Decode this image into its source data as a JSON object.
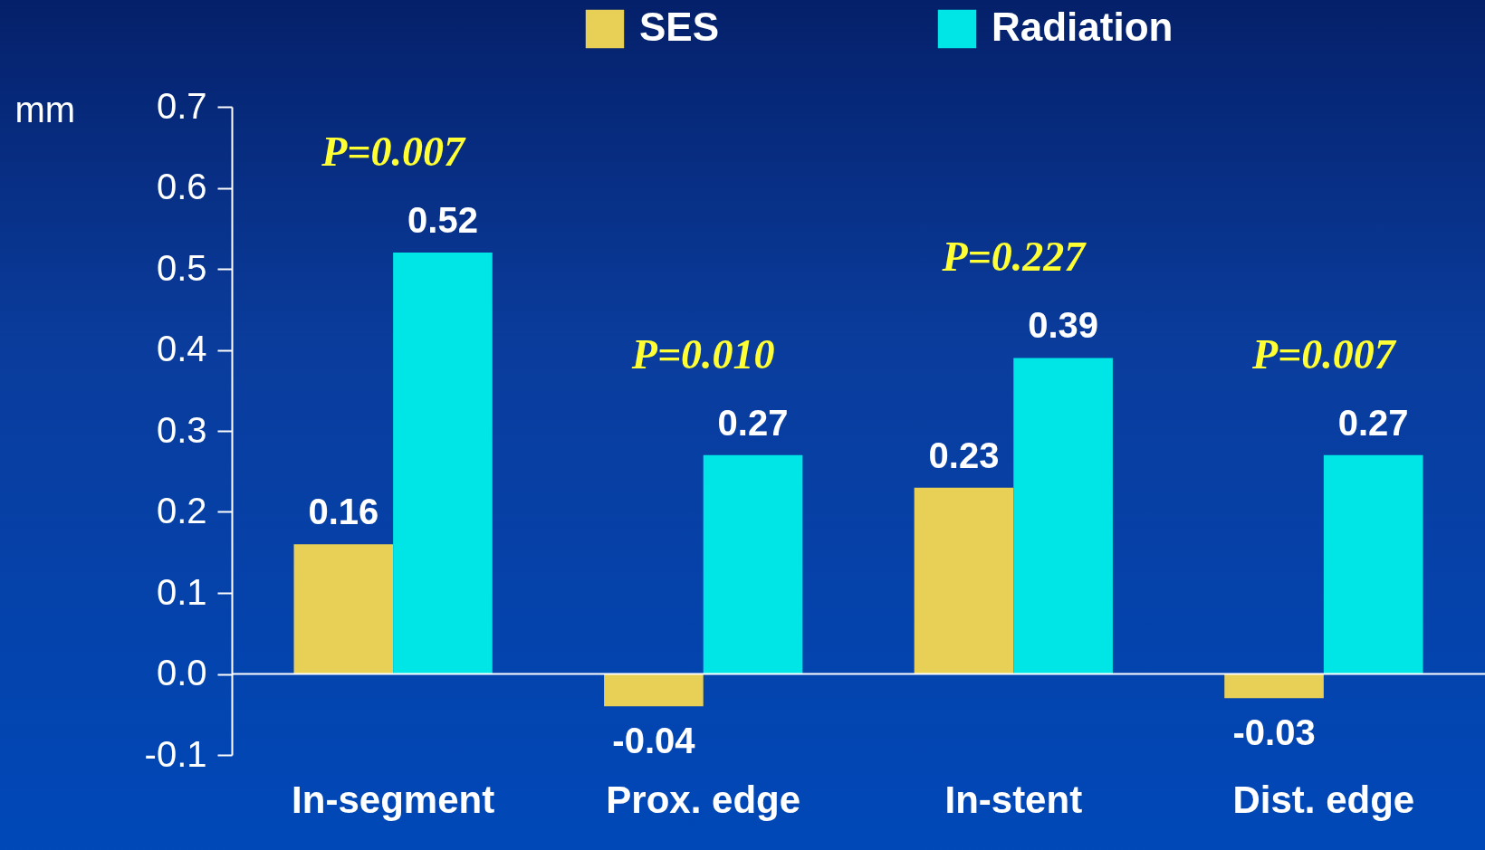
{
  "chart_data": {
    "type": "bar",
    "ylabel": "mm",
    "categories": [
      "In-segment",
      "Prox. edge",
      "In-stent",
      "Dist. edge"
    ],
    "series": [
      {
        "name": "SES",
        "color": "#e8cf55",
        "values": [
          0.16,
          -0.04,
          0.23,
          -0.03
        ]
      },
      {
        "name": "Radiation",
        "color": "#00e6e6",
        "values": [
          0.52,
          0.27,
          0.39,
          0.27
        ]
      }
    ],
    "ylim": [
      -0.1,
      0.7
    ],
    "yticks": [
      -0.1,
      {
        "value": 0,
        "label": "0.0"
      },
      0.1,
      0.2,
      0.3,
      0.4,
      0.5,
      0.6,
      0.7
    ],
    "ref_lines": [
      {
        "axis": "y",
        "value": 0
      }
    ],
    "annotations": [
      "P=0.007",
      "P=0.010",
      "P=0.227",
      "P=0.007"
    ],
    "data_labels": true,
    "legend": "top",
    "grid": false
  }
}
